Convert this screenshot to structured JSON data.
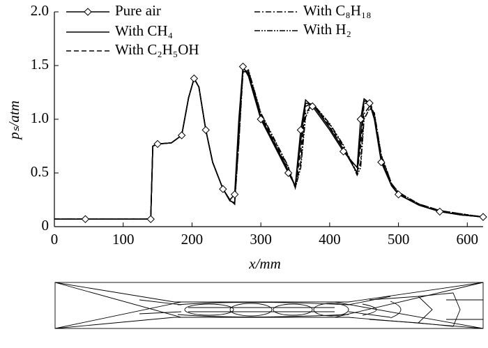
{
  "chart_data": {
    "type": "line",
    "x_label": "x/mm",
    "y_label": "pₛ/atm",
    "x": [
      0,
      45,
      95,
      140,
      143,
      150,
      170,
      185,
      195,
      203,
      210,
      220,
      230,
      245,
      255,
      262,
      268,
      274,
      282,
      300,
      320,
      340,
      350,
      358,
      365,
      375,
      400,
      420,
      440,
      445,
      450,
      458,
      465,
      475,
      490,
      500,
      530,
      560,
      590,
      623
    ],
    "series": [
      {
        "name": "Pure air",
        "color": "#000000",
        "dash": "none",
        "marker": "diamond",
        "values": [
          0.07,
          0.07,
          0.07,
          0.07,
          0.75,
          0.77,
          0.78,
          0.85,
          1.2,
          1.38,
          1.3,
          0.9,
          0.6,
          0.35,
          0.25,
          0.3,
          1.0,
          1.49,
          1.4,
          1.0,
          0.75,
          0.5,
          0.38,
          0.9,
          1.18,
          1.12,
          0.9,
          0.7,
          0.55,
          1.0,
          1.19,
          1.15,
          1.0,
          0.6,
          0.38,
          0.3,
          0.2,
          0.14,
          0.11,
          0.09
        ]
      },
      {
        "name": "With CH₄",
        "color": "#000000",
        "dash": "none",
        "values": [
          0.07,
          0.07,
          0.07,
          0.07,
          0.75,
          0.77,
          0.78,
          0.85,
          1.2,
          1.38,
          1.3,
          0.9,
          0.6,
          0.35,
          0.24,
          0.22,
          0.95,
          1.48,
          1.42,
          1.02,
          0.77,
          0.52,
          0.38,
          0.8,
          1.15,
          1.14,
          0.92,
          0.72,
          0.5,
          0.85,
          1.17,
          1.16,
          1.02,
          0.62,
          0.38,
          0.3,
          0.2,
          0.14,
          0.11,
          0.09
        ]
      },
      {
        "name": "With C₂H₅OH",
        "color": "#000000",
        "dash": "7,4",
        "values": [
          0.07,
          0.07,
          0.07,
          0.07,
          0.75,
          0.77,
          0.78,
          0.85,
          1.2,
          1.38,
          1.3,
          0.9,
          0.6,
          0.35,
          0.25,
          0.22,
          0.85,
          1.45,
          1.44,
          1.04,
          0.78,
          0.53,
          0.37,
          0.7,
          1.12,
          1.15,
          0.93,
          0.73,
          0.5,
          0.75,
          1.14,
          1.17,
          1.04,
          0.64,
          0.39,
          0.31,
          0.21,
          0.15,
          0.11,
          0.09
        ]
      },
      {
        "name": "With C₈H₁₈",
        "color": "#000000",
        "dash": "8,3,2,3",
        "values": [
          0.07,
          0.07,
          0.07,
          0.07,
          0.75,
          0.77,
          0.78,
          0.85,
          1.2,
          1.38,
          1.3,
          0.9,
          0.6,
          0.35,
          0.25,
          0.21,
          0.8,
          1.44,
          1.45,
          1.05,
          0.8,
          0.55,
          0.36,
          0.6,
          1.05,
          1.15,
          0.95,
          0.75,
          0.5,
          0.6,
          1.05,
          1.12,
          1.05,
          0.66,
          0.4,
          0.32,
          0.21,
          0.15,
          0.12,
          0.09
        ]
      },
      {
        "name": "With H₂",
        "color": "#000000",
        "dash": "8,2,2,2,2,2",
        "values": [
          0.07,
          0.07,
          0.07,
          0.07,
          0.75,
          0.77,
          0.78,
          0.85,
          1.2,
          1.38,
          1.3,
          0.9,
          0.6,
          0.35,
          0.25,
          0.21,
          0.78,
          1.43,
          1.46,
          1.06,
          0.81,
          0.56,
          0.36,
          0.55,
          1.02,
          1.15,
          0.96,
          0.76,
          0.48,
          0.55,
          1.0,
          1.1,
          1.06,
          0.67,
          0.4,
          0.32,
          0.21,
          0.15,
          0.12,
          0.09
        ]
      }
    ],
    "xlim": [
      0,
      623
    ],
    "ylim": [
      0,
      2
    ],
    "xticks": [
      0,
      100,
      200,
      300,
      400,
      500,
      600
    ],
    "yticks": [
      0,
      0.5,
      {
        "value": 1,
        "label": "1.0"
      },
      1.5,
      {
        "value": 2,
        "label": "2.0"
      }
    ],
    "legend": "top"
  }
}
